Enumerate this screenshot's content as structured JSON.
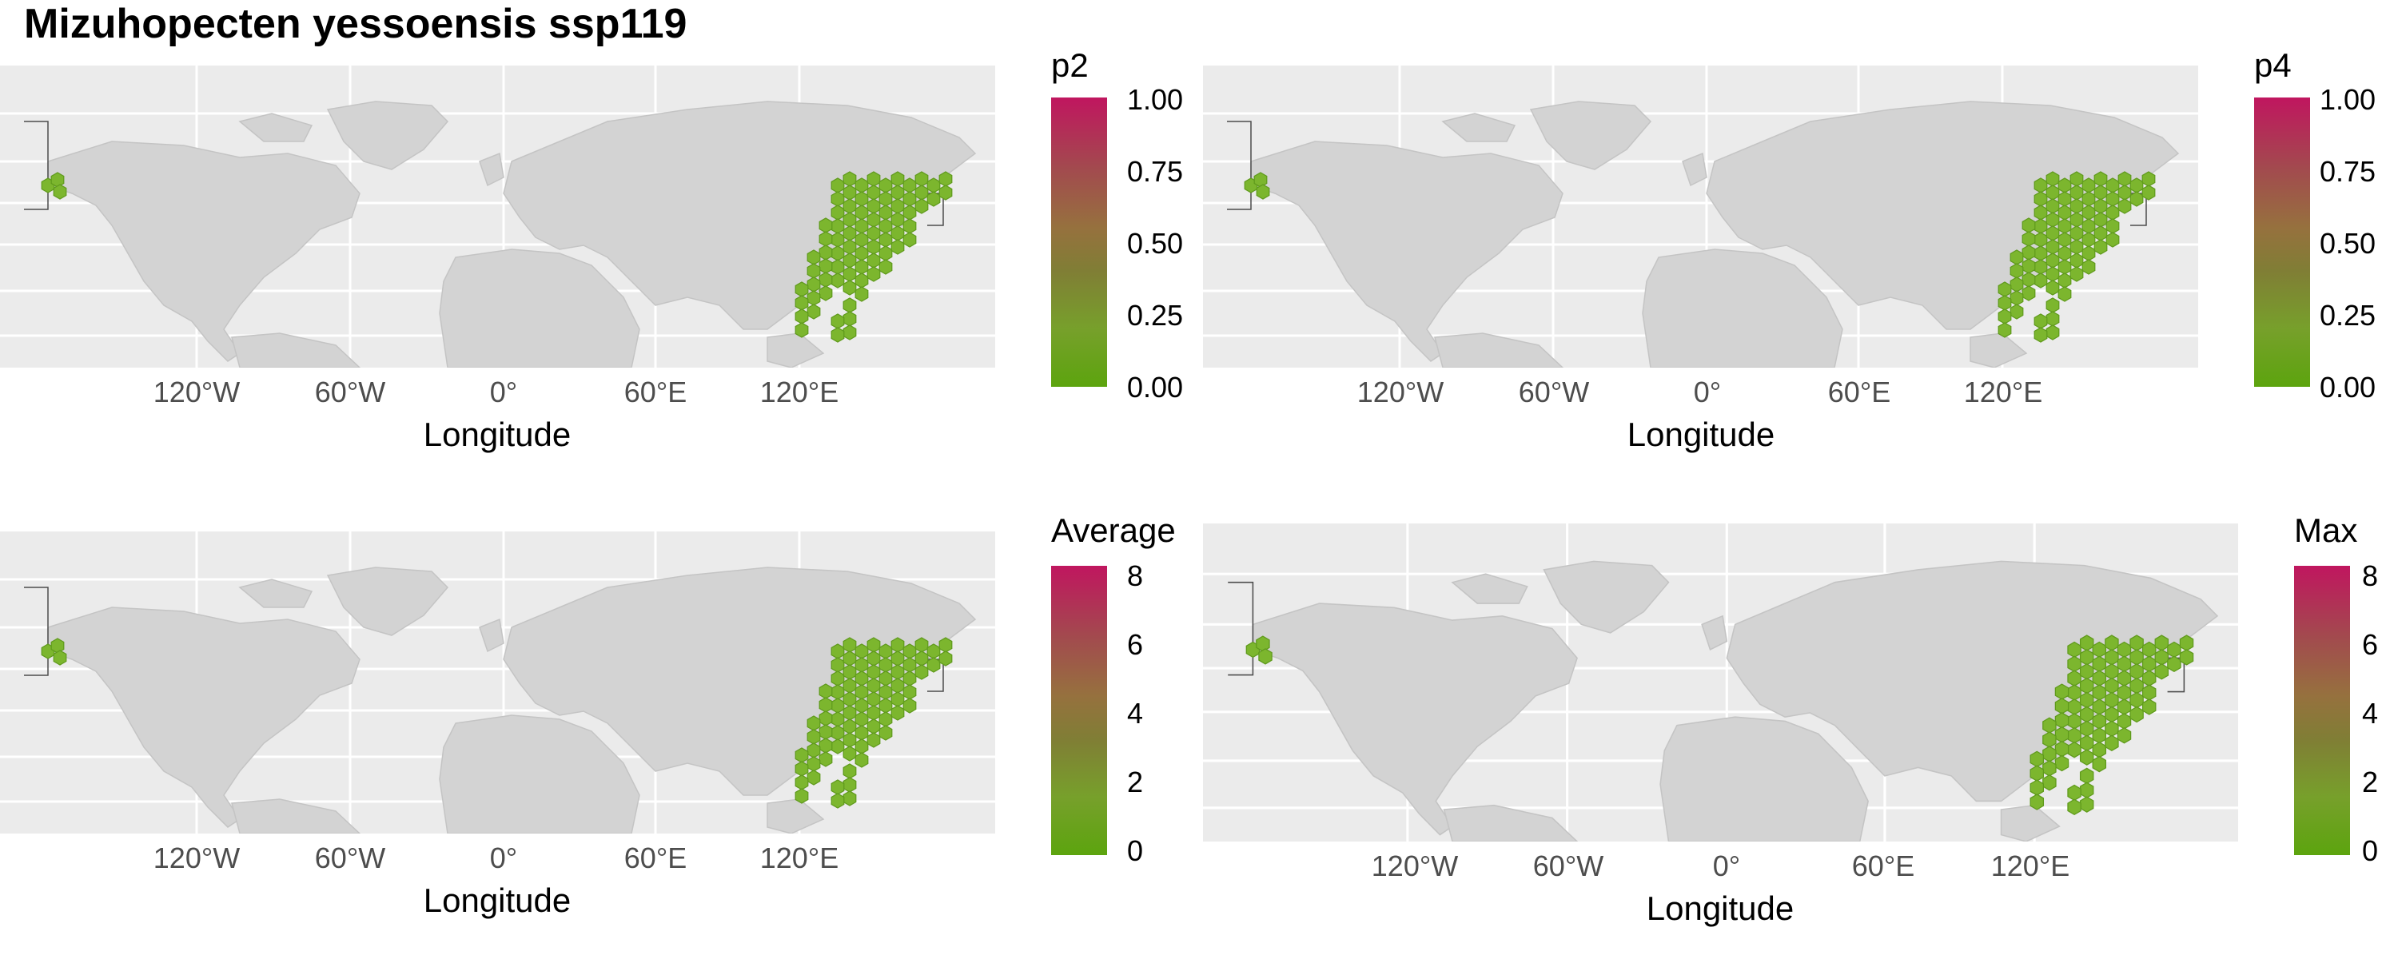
{
  "title": "Mizuhopecten yessoensis ssp119",
  "colors": {
    "panel_bg": "#ebebeb",
    "land": "#d3d3d3",
    "border": "#4d4d4d",
    "grid": "#ffffff",
    "hex_fill": "#7cb62e",
    "hex_stroke": "#5f9a1c",
    "gradient_high": "#c0165f",
    "gradient_low": "#5ca40e"
  },
  "panels": [
    {
      "id": "p2",
      "legend_title": "p2",
      "x_label": "Longitude",
      "x_ticks": [
        "120°W",
        "60°W",
        "0°",
        "60°E",
        "120°E"
      ],
      "legend_ticks": [
        "1.00",
        "0.75",
        "0.50",
        "0.25",
        "0.00"
      ],
      "legend_range": [
        0,
        1
      ]
    },
    {
      "id": "p4",
      "legend_title": "p4",
      "x_label": "Longitude",
      "x_ticks": [
        "120°W",
        "60°W",
        "0°",
        "60°E",
        "120°E"
      ],
      "legend_ticks": [
        "1.00",
        "0.75",
        "0.50",
        "0.25",
        "0.00"
      ],
      "legend_range": [
        0,
        1
      ]
    },
    {
      "id": "average",
      "legend_title": "Average",
      "x_label": "Longitude",
      "x_ticks": [
        "120°W",
        "60°W",
        "0°",
        "60°E",
        "120°E"
      ],
      "legend_ticks": [
        "8",
        "6",
        "4",
        "2",
        "0"
      ],
      "legend_range": [
        0,
        8
      ]
    },
    {
      "id": "max",
      "legend_title": "Max",
      "x_label": "Longitude",
      "x_ticks": [
        "120°W",
        "60°W",
        "0°",
        "60°E",
        "120°E"
      ],
      "legend_ticks": [
        "8",
        "6",
        "4",
        "2",
        "0"
      ],
      "legend_range": [
        0,
        8
      ]
    }
  ]
}
